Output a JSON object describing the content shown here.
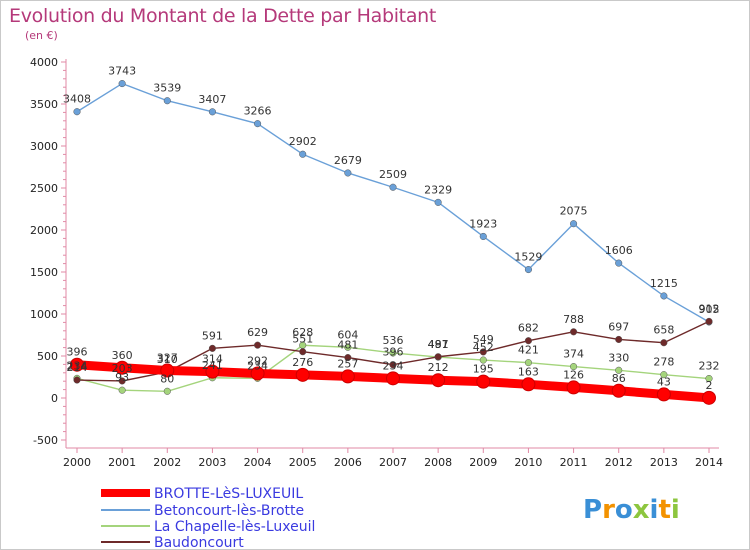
{
  "chart_data": {
    "type": "line",
    "title": "Evolution du Montant de la Dette par Habitant",
    "subtitle": "(en €)",
    "x": [
      2000,
      2001,
      2002,
      2003,
      2004,
      2005,
      2006,
      2007,
      2008,
      2009,
      2010,
      2011,
      2012,
      2013,
      2014
    ],
    "ylim": [
      -500,
      4000
    ],
    "yticks": [
      -500,
      0,
      500,
      1000,
      1500,
      2000,
      2500,
      3000,
      3500,
      4000
    ],
    "grid": false,
    "legend_placement": "bottom-left",
    "series": [
      {
        "name": "BROTTE-LèS-LUXEUIL",
        "color": "#ff0000",
        "highlight": true,
        "values": [
          396,
          360,
          327,
          314,
          292,
          276,
          257,
          234,
          212,
          195,
          163,
          126,
          86,
          43,
          2
        ]
      },
      {
        "name": "Betoncourt-lès-Brotte",
        "color": "#6aa0d8",
        "highlight": false,
        "values": [
          3408,
          3743,
          3539,
          3407,
          3266,
          2902,
          2679,
          2509,
          2329,
          1923,
          1529,
          2075,
          1606,
          1215,
          905
        ]
      },
      {
        "name": "La Chapelle-lès-Luxeuil",
        "color": "#a4d47c",
        "highlight": false,
        "values": [
          234,
          93,
          80,
          241,
          234,
          628,
          604,
          536,
          487,
          452,
          421,
          374,
          330,
          278,
          232
        ]
      },
      {
        "name": "Baudoncourt",
        "color": "#6e2a2a",
        "highlight": false,
        "values": [
          214,
          203,
          310,
          591,
          629,
          551,
          481,
          396,
          491,
          549,
          682,
          788,
          697,
          658,
          912
        ]
      }
    ]
  },
  "brand": {
    "text": "Proxiti",
    "colors": [
      "#3a8fd6",
      "#f39200",
      "#3a8fd6",
      "#8dc63f",
      "#3a8fd6",
      "#f39200",
      "#8dc63f"
    ]
  }
}
